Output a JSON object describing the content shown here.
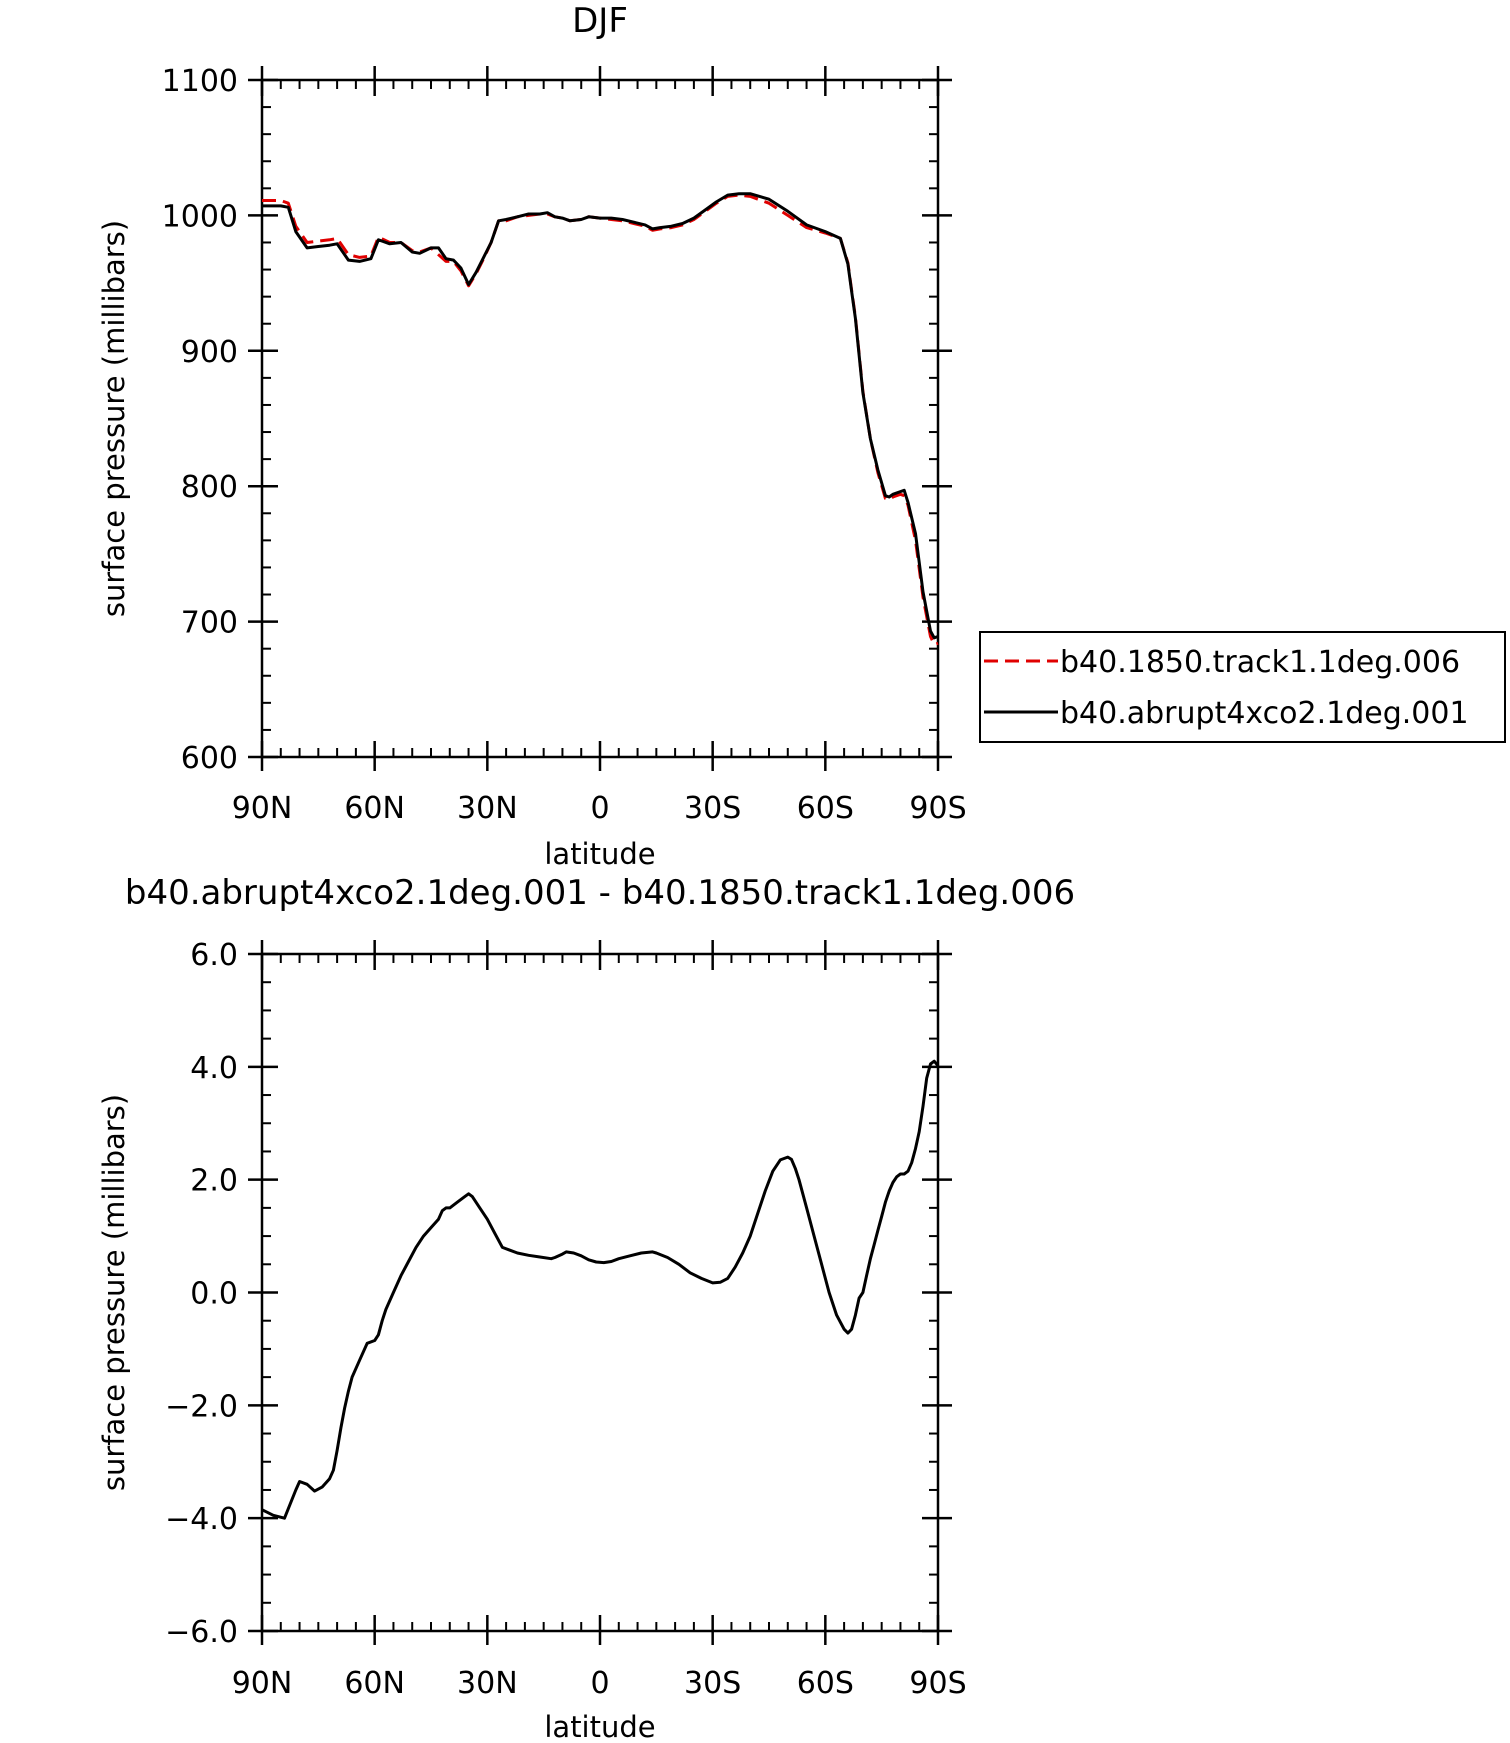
{
  "chart_data": [
    {
      "type": "line",
      "title": "DJF",
      "xlabel": "latitude",
      "ylabel": "surface pressure (millibars)",
      "xlim": [
        90,
        -90
      ],
      "ylim": [
        600,
        1100
      ],
      "x_ticks": [
        {
          "value": 90,
          "label": "90N"
        },
        {
          "value": 60,
          "label": "60N"
        },
        {
          "value": 30,
          "label": "30N"
        },
        {
          "value": 0,
          "label": "0"
        },
        {
          "value": -30,
          "label": "30S"
        },
        {
          "value": -60,
          "label": "60S"
        },
        {
          "value": -90,
          "label": "90S"
        }
      ],
      "y_ticks": [
        {
          "value": 600,
          "label": "600"
        },
        {
          "value": 700,
          "label": "700"
        },
        {
          "value": 800,
          "label": "800"
        },
        {
          "value": 900,
          "label": "900"
        },
        {
          "value": 1000,
          "label": "1000"
        },
        {
          "value": 1100,
          "label": "1100"
        }
      ],
      "legend_position": "right",
      "series": [
        {
          "name": "b40.1850.track1.1deg.006",
          "color": "#e00000",
          "dash": "dashed",
          "x": [
            90,
            85,
            83,
            81,
            78,
            75,
            72,
            70,
            67,
            64,
            61,
            59,
            56,
            53,
            50,
            48,
            45,
            43,
            41,
            39,
            37,
            35,
            33,
            31,
            29,
            27,
            25,
            22,
            19,
            16,
            14,
            12,
            10,
            8,
            5,
            3,
            0,
            -3,
            -6,
            -9,
            -12,
            -14,
            -16,
            -19,
            -22,
            -25,
            -28,
            -31,
            -34,
            -37,
            -40,
            -45,
            -50,
            -55,
            -60,
            -64,
            -66,
            -67,
            -68,
            -70,
            -72,
            -74,
            -76,
            -77,
            -78,
            -80,
            -81,
            -82,
            -84,
            -86,
            -88,
            -89,
            -90
          ],
          "y": [
            1011,
            1011,
            1009,
            992,
            980,
            981,
            982,
            983,
            971,
            969,
            970,
            984,
            980,
            980,
            974,
            973,
            976,
            971,
            966,
            966,
            959,
            948,
            957,
            968,
            980,
            996,
            996,
            999,
            1000,
            1001,
            1001,
            999,
            998,
            996,
            997,
            999,
            998,
            997,
            996,
            994,
            992,
            989,
            990,
            991,
            993,
            997,
            1003,
            1009,
            1014,
            1015,
            1014,
            1009,
            1000,
            991,
            987,
            983,
            965,
            945,
            925,
            870,
            835,
            810,
            791,
            790,
            792,
            794,
            793,
            786,
            760,
            718,
            689,
            683,
            684
          ]
        },
        {
          "name": "b40.abrupt4xco2.1deg.001",
          "color": "#000000",
          "dash": "solid",
          "x": [
            90,
            85,
            83,
            81,
            78,
            75,
            72,
            70,
            67,
            64,
            61,
            59,
            56,
            53,
            50,
            48,
            45,
            43,
            41,
            39,
            37,
            35,
            33,
            31,
            29,
            27,
            25,
            22,
            19,
            16,
            14,
            12,
            10,
            8,
            5,
            3,
            0,
            -3,
            -6,
            -9,
            -12,
            -14,
            -16,
            -19,
            -22,
            -25,
            -28,
            -31,
            -34,
            -37,
            -40,
            -45,
            -50,
            -55,
            -60,
            -64,
            -66,
            -67,
            -68,
            -70,
            -72,
            -74,
            -76,
            -77,
            -78,
            -80,
            -81,
            -82,
            -84,
            -86,
            -88,
            -89,
            -90
          ],
          "y": [
            1007,
            1007,
            1006,
            988,
            976,
            977,
            978,
            979,
            967,
            966,
            968,
            982,
            979,
            980,
            973,
            972,
            976,
            976,
            968,
            967,
            961,
            949,
            958,
            969,
            980,
            996,
            997,
            999,
            1001,
            1001,
            1002,
            999,
            998,
            996,
            997,
            999,
            998,
            998,
            997,
            995,
            993,
            990,
            991,
            992,
            994,
            998,
            1004,
            1010,
            1015,
            1016,
            1016,
            1012,
            1003,
            993,
            988,
            983,
            964,
            944,
            924,
            869,
            835,
            812,
            793,
            792,
            794,
            796,
            797,
            788,
            765,
            722,
            693,
            688,
            689
          ]
        }
      ]
    },
    {
      "type": "line",
      "title": "b40.abrupt4xco2.1deg.001 - b40.1850.track1.1deg.006",
      "xlabel": "latitude",
      "ylabel": "surface pressure (millibars)",
      "xlim": [
        90,
        -90
      ],
      "ylim": [
        -6,
        6
      ],
      "x_ticks": [
        {
          "value": 90,
          "label": "90N"
        },
        {
          "value": 60,
          "label": "60N"
        },
        {
          "value": 30,
          "label": "30N"
        },
        {
          "value": 0,
          "label": "0"
        },
        {
          "value": -30,
          "label": "30S"
        },
        {
          "value": -60,
          "label": "60S"
        },
        {
          "value": -90,
          "label": "90S"
        }
      ],
      "y_ticks": [
        {
          "value": -6,
          "label": "−6.0"
        },
        {
          "value": -4,
          "label": "−4.0"
        },
        {
          "value": -2,
          "label": "−2.0"
        },
        {
          "value": 0,
          "label": "0.0"
        },
        {
          "value": 2,
          "label": "2.0"
        },
        {
          "value": 4,
          "label": "4.0"
        },
        {
          "value": 6,
          "label": "6.0"
        }
      ],
      "series": [
        {
          "color": "#000000",
          "dash": "solid",
          "x": [
            90,
            87,
            84,
            81,
            80,
            78,
            76,
            74,
            72,
            71,
            70,
            69,
            68,
            67,
            66,
            64,
            62,
            60,
            59,
            58,
            57,
            55,
            53,
            51,
            49,
            47,
            45,
            43,
            42,
            41,
            40,
            38,
            36,
            35,
            34,
            32,
            30,
            28,
            26,
            24,
            22,
            19,
            16,
            13,
            12,
            10,
            9,
            7,
            5,
            3,
            1,
            -1,
            -3,
            -5,
            -8,
            -11,
            -14,
            -15,
            -18,
            -21,
            -24,
            -27,
            -30,
            -32,
            -34,
            -36,
            -38,
            -40,
            -42,
            -44,
            -46,
            -48,
            -50,
            -51,
            -52,
            -53,
            -55,
            -57,
            -59,
            -61,
            -63,
            -65,
            -66,
            -67,
            -68,
            -69,
            -70,
            -71,
            -72,
            -73,
            -74,
            -75,
            -76,
            -77,
            -78,
            -79,
            -80,
            -81,
            -82,
            -83,
            -84,
            -85,
            -86,
            -87,
            -88,
            -89,
            -90
          ],
          "y": [
            -3.85,
            -3.95,
            -4.0,
            -3.5,
            -3.35,
            -3.4,
            -3.52,
            -3.45,
            -3.3,
            -3.15,
            -2.8,
            -2.4,
            -2.05,
            -1.75,
            -1.5,
            -1.2,
            -0.9,
            -0.85,
            -0.75,
            -0.5,
            -0.3,
            0.0,
            0.3,
            0.55,
            0.8,
            1.0,
            1.15,
            1.3,
            1.45,
            1.5,
            1.5,
            1.6,
            1.7,
            1.75,
            1.7,
            1.5,
            1.3,
            1.05,
            0.8,
            0.75,
            0.7,
            0.66,
            0.63,
            0.6,
            0.62,
            0.68,
            0.72,
            0.7,
            0.65,
            0.58,
            0.54,
            0.53,
            0.55,
            0.6,
            0.65,
            0.7,
            0.72,
            0.7,
            0.62,
            0.5,
            0.35,
            0.25,
            0.17,
            0.18,
            0.25,
            0.45,
            0.7,
            1.0,
            1.4,
            1.8,
            2.15,
            2.35,
            2.4,
            2.36,
            2.2,
            2.0,
            1.5,
            1.0,
            0.5,
            0.0,
            -0.4,
            -0.65,
            -0.72,
            -0.65,
            -0.4,
            -0.1,
            0.0,
            0.3,
            0.6,
            0.85,
            1.1,
            1.35,
            1.6,
            1.8,
            1.95,
            2.05,
            2.1,
            2.1,
            2.15,
            2.3,
            2.55,
            2.85,
            3.3,
            3.8,
            4.05,
            4.1,
            4.02
          ]
        }
      ]
    }
  ]
}
